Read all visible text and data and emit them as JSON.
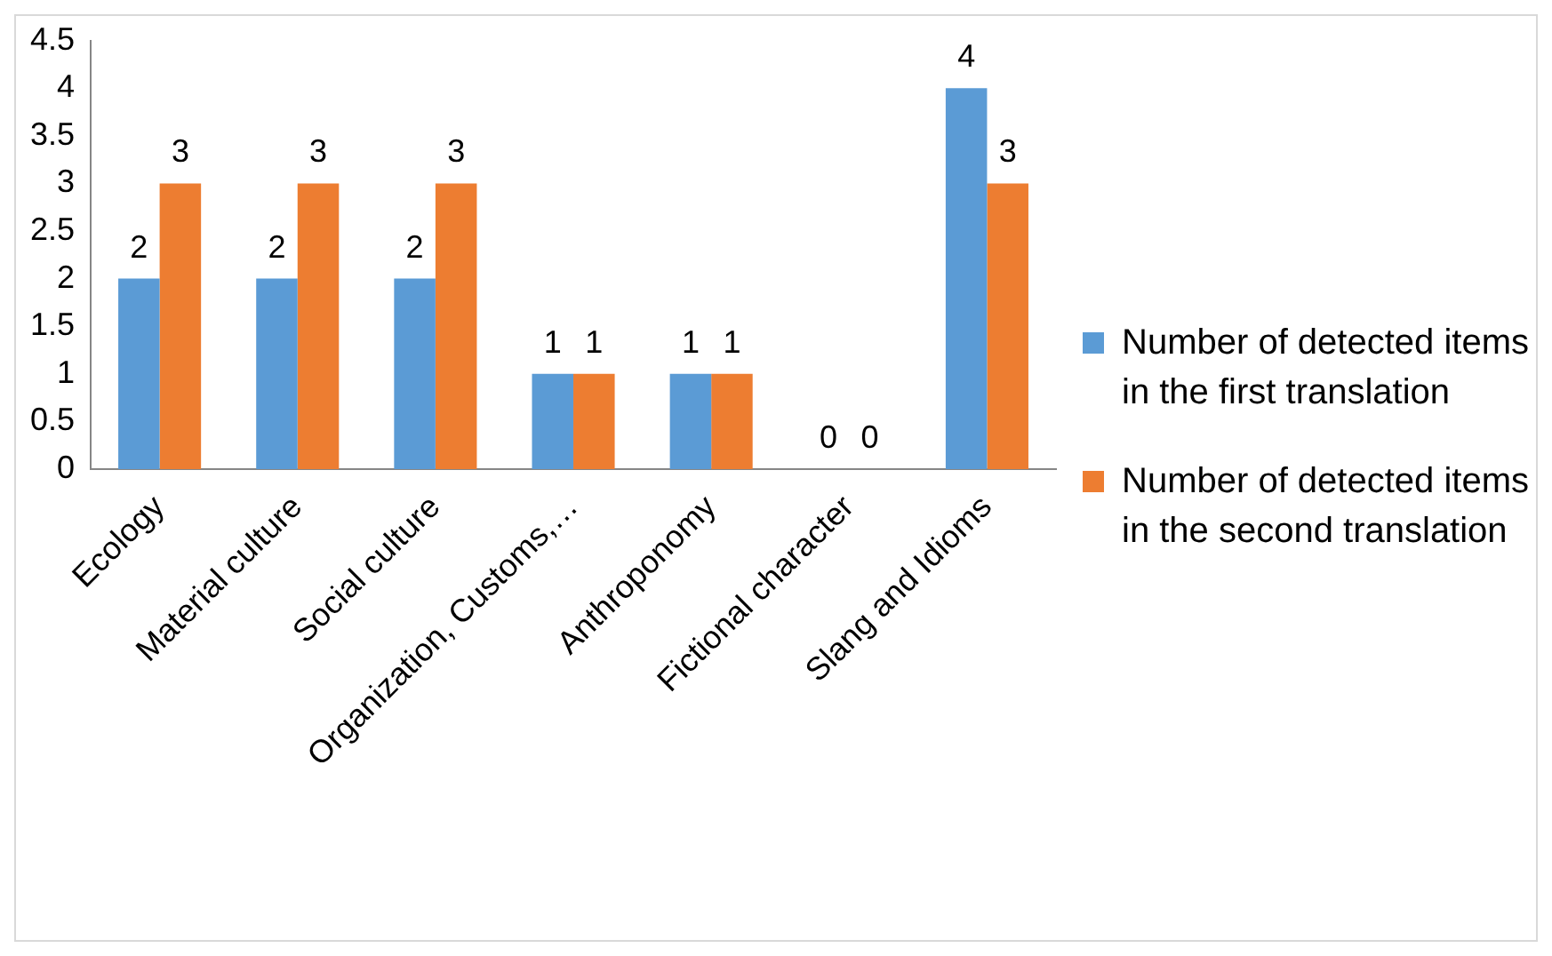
{
  "chart_data": {
    "type": "bar",
    "categories": [
      "Ecology",
      "Material culture",
      "Social culture",
      "Organization, Customs,…",
      "Anthroponomy",
      "Fictional character",
      "Slang and Idioms"
    ],
    "series": [
      {
        "name": "Number of detected items in the first translation",
        "color": "#5b9bd5",
        "values": [
          2,
          2,
          2,
          1,
          1,
          0,
          4
        ]
      },
      {
        "name": "Number of detected items in the second translation",
        "color": "#ed7d31",
        "values": [
          3,
          3,
          3,
          1,
          1,
          0,
          3
        ]
      }
    ],
    "ylim": [
      0,
      4.5
    ],
    "yticks": [
      0,
      0.5,
      1,
      1.5,
      2,
      2.5,
      3,
      3.5,
      4,
      4.5
    ],
    "grid": false,
    "legend": "right",
    "data_labels": true
  }
}
